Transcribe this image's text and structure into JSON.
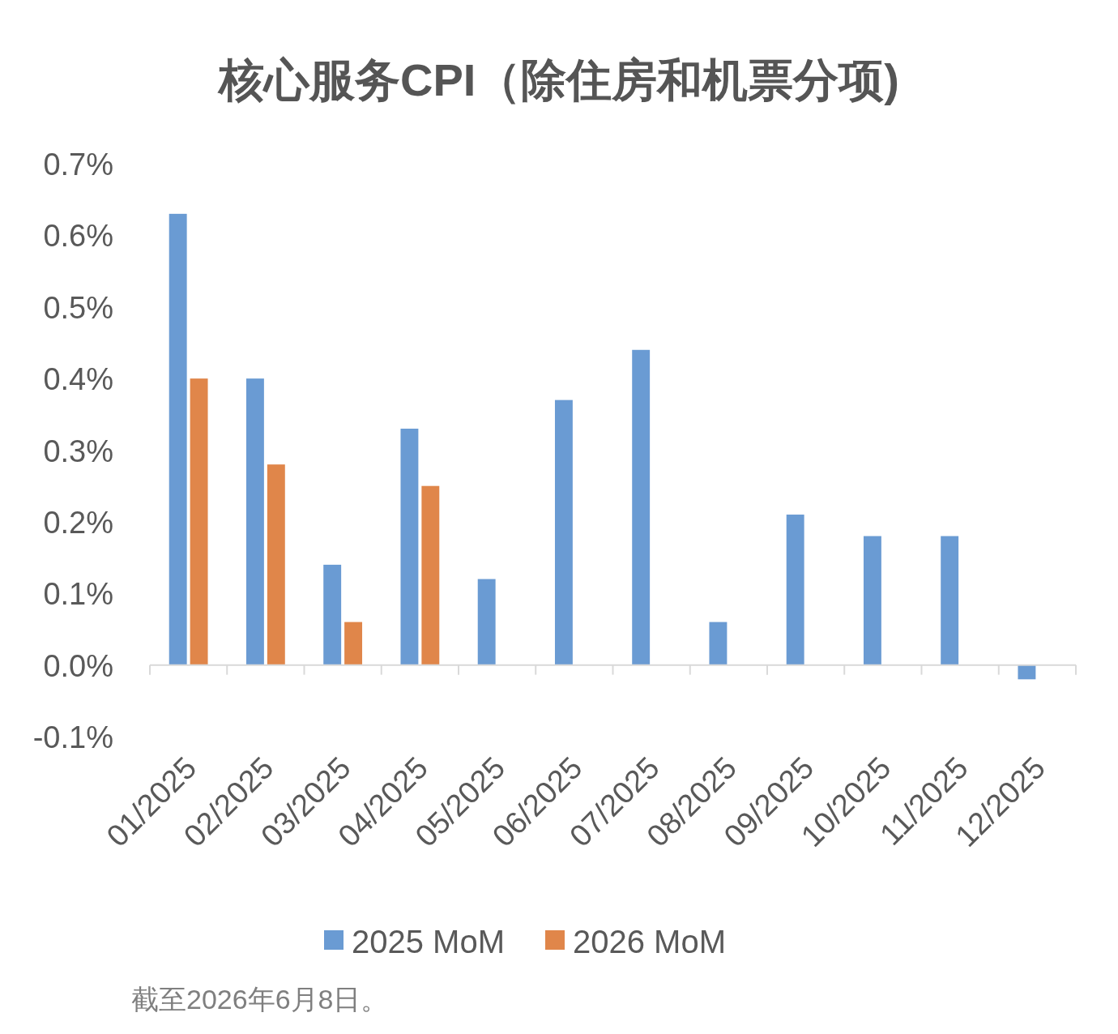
{
  "chart_data": {
    "type": "bar",
    "title": "核心服务CPI（除住房和机票分项)",
    "categories": [
      "01/2025",
      "02/2025",
      "03/2025",
      "04/2025",
      "05/2025",
      "06/2025",
      "07/2025",
      "08/2025",
      "09/2025",
      "10/2025",
      "11/2025",
      "12/2025"
    ],
    "series": [
      {
        "name": "2025 MoM",
        "color": "#6a9bd3",
        "values": [
          0.63,
          0.4,
          0.14,
          0.33,
          0.12,
          0.37,
          0.44,
          0.06,
          0.21,
          0.18,
          0.18,
          -0.02
        ]
      },
      {
        "name": "2026 MoM",
        "color": "#e0864a",
        "values": [
          0.4,
          0.28,
          0.06,
          0.25,
          null,
          null,
          null,
          null,
          null,
          null,
          null,
          null
        ]
      }
    ],
    "ylim": [
      -0.1,
      0.7
    ],
    "yticks": [
      {
        "value": -0.1,
        "label": "-0.1%"
      },
      {
        "value": 0,
        "label": "0.0%"
      },
      {
        "value": 0.1,
        "label": "0.1%"
      },
      {
        "value": 0.2,
        "label": "0.2%"
      },
      {
        "value": 0.3,
        "label": "0.3%"
      },
      {
        "value": 0.4,
        "label": "0.4%"
      },
      {
        "value": 0.5,
        "label": "0.5%"
      },
      {
        "value": 0.6,
        "label": "0.6%"
      },
      {
        "value": 0.7,
        "label": "0.7%"
      }
    ],
    "legend": "bottom",
    "annotations": [
      "截至2026年6月8日。"
    ]
  }
}
